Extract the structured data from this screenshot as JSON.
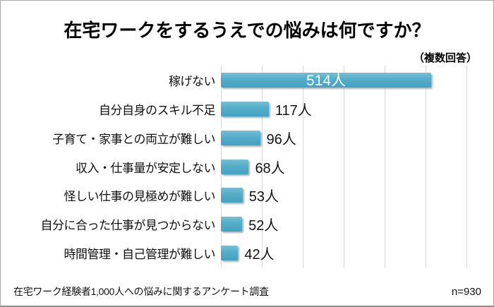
{
  "title": "在宅ワークをするうえでの悩みは何ですか？",
  "note": "（複数回答）",
  "footer": {
    "source": "在宅ワーク経験者1,000人への悩みに関するアンケート調査",
    "sample": "n=930"
  },
  "colors": {
    "bar_top": "#72c0d6",
    "bar_bottom": "#45a2c1",
    "gridline": "#d6d6d6",
    "value_inside_text": "#ffffff",
    "text": "#111111"
  },
  "chart_data": {
    "type": "bar",
    "orientation": "horizontal",
    "title": "在宅ワークをするうえでの悩みは何ですか？",
    "categories": [
      "稼げない",
      "自分自身のスキル不足",
      "子育て・家事との両立が難しい",
      "収入・仕事量が安定しない",
      "怪しい仕事の見極めが難しい",
      "自分に合った仕事が見つからない",
      "時間管理・自己管理が難しい"
    ],
    "values": [
      514,
      117,
      96,
      68,
      53,
      52,
      42
    ],
    "unit": "人",
    "value_labels": [
      "514人",
      "117人",
      "96人",
      "68人",
      "53人",
      "52人",
      "42人"
    ],
    "xlim": [
      0,
      600
    ],
    "grid_step": 100,
    "grid": true,
    "legend": null,
    "xlabel": "",
    "ylabel": ""
  }
}
